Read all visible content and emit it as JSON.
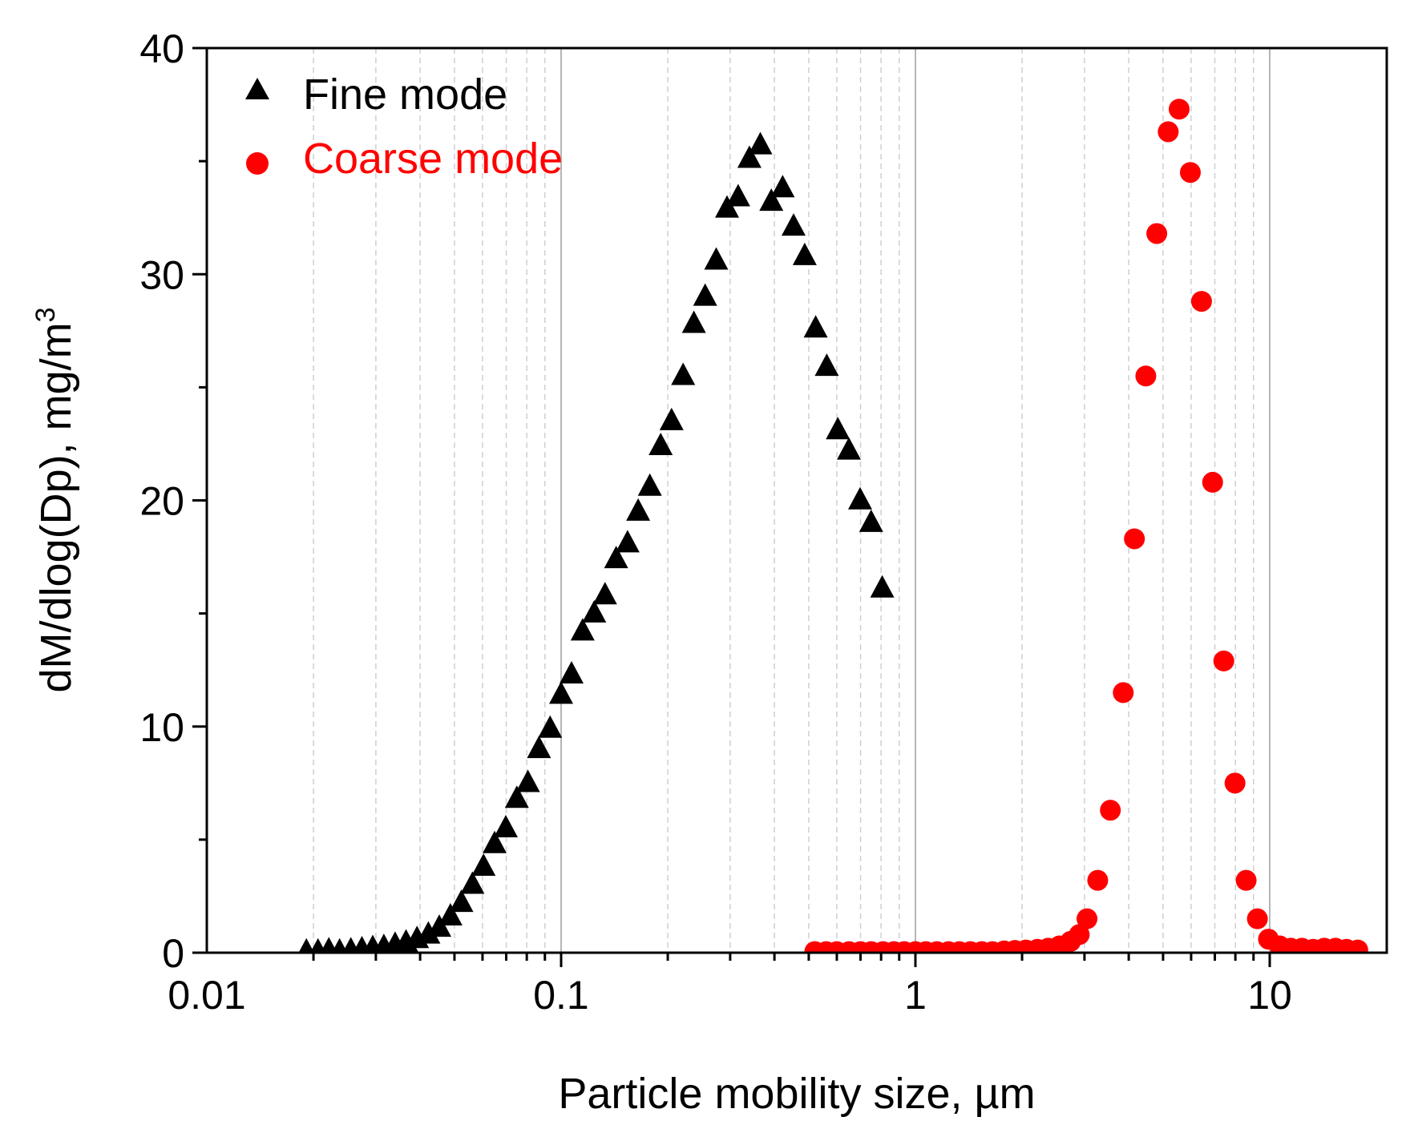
{
  "chart_data": {
    "type": "scatter",
    "xscale": "log",
    "xlim": [
      0.01,
      20
    ],
    "ylim": [
      0,
      40
    ],
    "xlabel": "Particle mobility size, µm",
    "ylabel": "dM/dlog(Dp), mg/m",
    "ylabel_superscript": "3",
    "x_ticks": [
      0.01,
      0.1,
      1,
      10
    ],
    "x_tick_labels": [
      "0.01",
      "0.1",
      "1",
      "10"
    ],
    "y_ticks": [
      0,
      10,
      20,
      30,
      40
    ],
    "y_tick_labels": [
      "0",
      "10",
      "20",
      "30",
      "40"
    ],
    "y_minor_ticks": [
      5,
      15,
      25,
      35
    ],
    "grid": "vertical (major solid, minor dashed)",
    "legend_position": "top-left",
    "series": [
      {
        "name": "Fine mode",
        "marker": "triangle",
        "color": "#000000",
        "x": [
          0.0191,
          0.0206,
          0.0221,
          0.0237,
          0.0255,
          0.0274,
          0.0294,
          0.0316,
          0.034,
          0.0365,
          0.0392,
          0.0422,
          0.0453,
          0.0487,
          0.0523,
          0.0562,
          0.0604,
          0.0649,
          0.0698,
          0.075,
          0.0806,
          0.0866,
          0.0931,
          0.1,
          0.107,
          0.115,
          0.124,
          0.133,
          0.143,
          0.154,
          0.165,
          0.178,
          0.191,
          0.205,
          0.221,
          0.237,
          0.255,
          0.274,
          0.294,
          0.316,
          0.34,
          0.365,
          0.392,
          0.422,
          0.453,
          0.487,
          0.523,
          0.562,
          0.604,
          0.649,
          0.698,
          0.75,
          0.806
        ],
        "y": [
          0.05,
          0.05,
          0.1,
          0.05,
          0.1,
          0.15,
          0.2,
          0.25,
          0.35,
          0.45,
          0.6,
          0.8,
          1.1,
          1.6,
          2.2,
          3.0,
          3.8,
          4.8,
          5.5,
          6.8,
          7.5,
          9.0,
          9.9,
          11.4,
          12.3,
          14.2,
          15.0,
          15.8,
          17.4,
          18.1,
          19.5,
          20.6,
          22.4,
          23.5,
          25.5,
          27.8,
          29.0,
          30.6,
          32.9,
          33.4,
          35.1,
          35.7,
          33.2,
          33.8,
          32.1,
          30.8,
          27.6,
          25.9,
          23.1,
          22.2,
          20.0,
          19.0,
          16.1
        ]
      },
      {
        "name": "Coarse mode",
        "marker": "circle",
        "color": "#ff0000",
        "x": [
          0.52,
          0.56,
          0.6,
          0.65,
          0.7,
          0.75,
          0.81,
          0.87,
          0.93,
          1.0,
          1.07,
          1.15,
          1.24,
          1.33,
          1.43,
          1.54,
          1.65,
          1.78,
          1.91,
          2.05,
          2.21,
          2.37,
          2.55,
          2.74,
          2.9,
          3.05,
          3.27,
          3.55,
          3.86,
          4.15,
          4.47,
          4.8,
          5.17,
          5.55,
          5.97,
          6.42,
          6.9,
          7.42,
          7.98,
          8.58,
          9.23,
          9.92,
          10.67,
          11.47,
          12.33,
          13.26,
          14.26,
          15.33,
          16.48,
          17.72
        ],
        "y": [
          0.05,
          0.05,
          0.05,
          0.05,
          0.05,
          0.05,
          0.05,
          0.05,
          0.05,
          0.05,
          0.05,
          0.05,
          0.05,
          0.05,
          0.05,
          0.05,
          0.05,
          0.08,
          0.1,
          0.12,
          0.15,
          0.2,
          0.3,
          0.5,
          0.8,
          1.5,
          3.2,
          6.3,
          11.5,
          18.3,
          25.5,
          31.8,
          36.3,
          37.3,
          34.5,
          28.8,
          20.8,
          12.9,
          7.5,
          3.2,
          1.5,
          0.6,
          0.3,
          0.2,
          0.2,
          0.15,
          0.2,
          0.2,
          0.15,
          0.12
        ]
      }
    ]
  }
}
